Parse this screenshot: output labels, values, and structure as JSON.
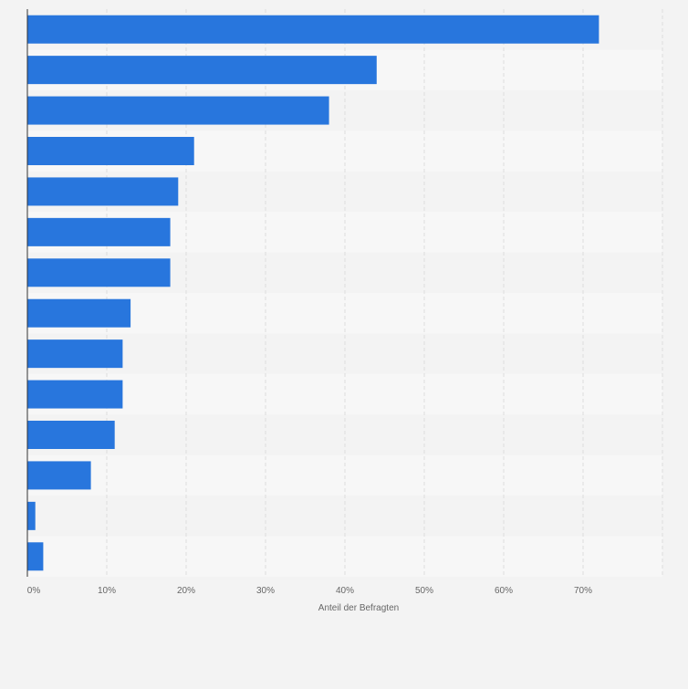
{
  "chart_data": {
    "type": "bar",
    "orientation": "horizontal",
    "xlabel": "Anteil der Befragten",
    "ylabel": "",
    "xlim": [
      0,
      80
    ],
    "x_ticks": [
      0,
      10,
      20,
      30,
      40,
      50,
      60,
      70
    ],
    "tick_suffix": "%",
    "grid": true,
    "values": [
      72,
      44,
      38,
      21,
      19,
      18,
      18,
      13,
      12,
      12,
      11,
      8,
      1,
      2
    ],
    "colors": {
      "bar": "#2876dd",
      "background": "#f3f3f3",
      "band_light": "#f7f7f7",
      "band_dark": "#f3f3f3",
      "grid": "#dcdcdc",
      "axis": "#333333",
      "text": "#666666"
    }
  }
}
